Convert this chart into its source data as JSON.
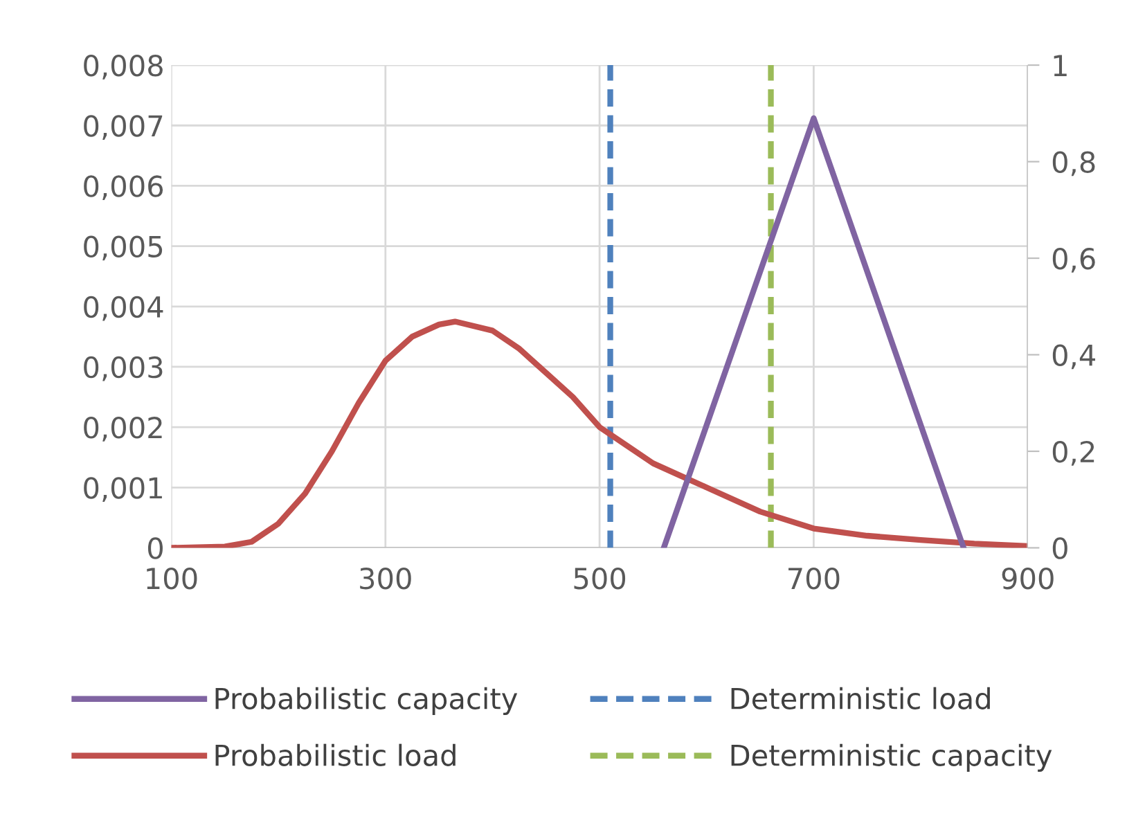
{
  "chart_data": {
    "type": "line",
    "xlim": [
      100,
      900
    ],
    "xticks": [
      100,
      300,
      500,
      700,
      900
    ],
    "ylim": [
      0,
      0.008
    ],
    "yticks": [
      {
        "value": 0,
        "label": "0"
      },
      {
        "value": 0.001,
        "label": "0,001"
      },
      {
        "value": 0.002,
        "label": "0,002"
      },
      {
        "value": 0.003,
        "label": "0,003"
      },
      {
        "value": 0.004,
        "label": "0,004"
      },
      {
        "value": 0.005,
        "label": "0,005"
      },
      {
        "value": 0.006,
        "label": "0,006"
      },
      {
        "value": 0.007,
        "label": "0,007"
      },
      {
        "value": 0.008,
        "label": "0,008"
      }
    ],
    "y2lim": [
      0,
      1
    ],
    "y2ticks": [
      {
        "value": 0,
        "label": "0"
      },
      {
        "value": 0.2,
        "label": "0,2"
      },
      {
        "value": 0.4,
        "label": "0,4"
      },
      {
        "value": 0.6,
        "label": "0,6"
      },
      {
        "value": 0.8,
        "label": "0,8"
      },
      {
        "value": 1,
        "label": "1"
      }
    ],
    "grid": true,
    "legend": "bottom",
    "marker": "none",
    "line_style": "solid",
    "series": [
      {
        "name": "Probabilistic capacity",
        "color": "#8064a2",
        "axis": "y2",
        "x": [
          560,
          700,
          840
        ],
        "values": [
          0,
          0.89,
          0
        ]
      },
      {
        "name": "Probabilistic load",
        "color": "#c0504d",
        "axis": "y",
        "x": [
          100,
          150,
          175,
          200,
          225,
          250,
          275,
          300,
          325,
          350,
          365,
          400,
          425,
          450,
          475,
          500,
          525,
          550,
          575,
          600,
          650,
          700,
          750,
          800,
          850,
          900
        ],
        "values": [
          0,
          2e-05,
          0.0001,
          0.0004,
          0.0009,
          0.0016,
          0.0024,
          0.0031,
          0.0035,
          0.0037,
          0.00375,
          0.0036,
          0.0033,
          0.0029,
          0.0025,
          0.002,
          0.0017,
          0.0014,
          0.0012,
          0.001,
          0.0006,
          0.00032,
          0.0002,
          0.00013,
          7e-05,
          3e-05
        ]
      }
    ],
    "ref_lines": [
      {
        "axis": "x",
        "value": 510,
        "label": "Deterministic load",
        "color": "#4f81bd",
        "line_style": "dashed"
      },
      {
        "axis": "x",
        "value": 660,
        "label": "Deterministic capacity",
        "color": "#9bbb59",
        "line_style": "dashed"
      }
    ]
  }
}
